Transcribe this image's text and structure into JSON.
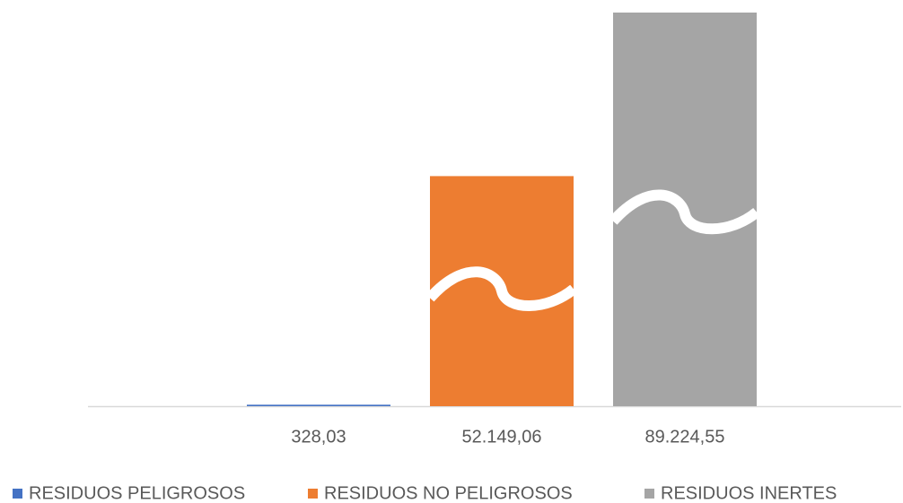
{
  "chart_data": {
    "type": "bar",
    "series": [
      {
        "name": "RESIDUOS PELIGROSOS",
        "color": "#4472c4",
        "values": [
          328.03
        ],
        "value_labels": [
          "328,03"
        ]
      },
      {
        "name": "RESIDUOS NO PELIGROSOS",
        "color": "#ed7d31",
        "values": [
          52149.06
        ],
        "value_labels": [
          "52.149,06"
        ]
      },
      {
        "name": "RESIDUOS INERTES",
        "color": "#a5a5a5",
        "values": [
          89224.55
        ],
        "value_labels": [
          "89.224,55"
        ]
      }
    ],
    "legend": "bottom"
  }
}
